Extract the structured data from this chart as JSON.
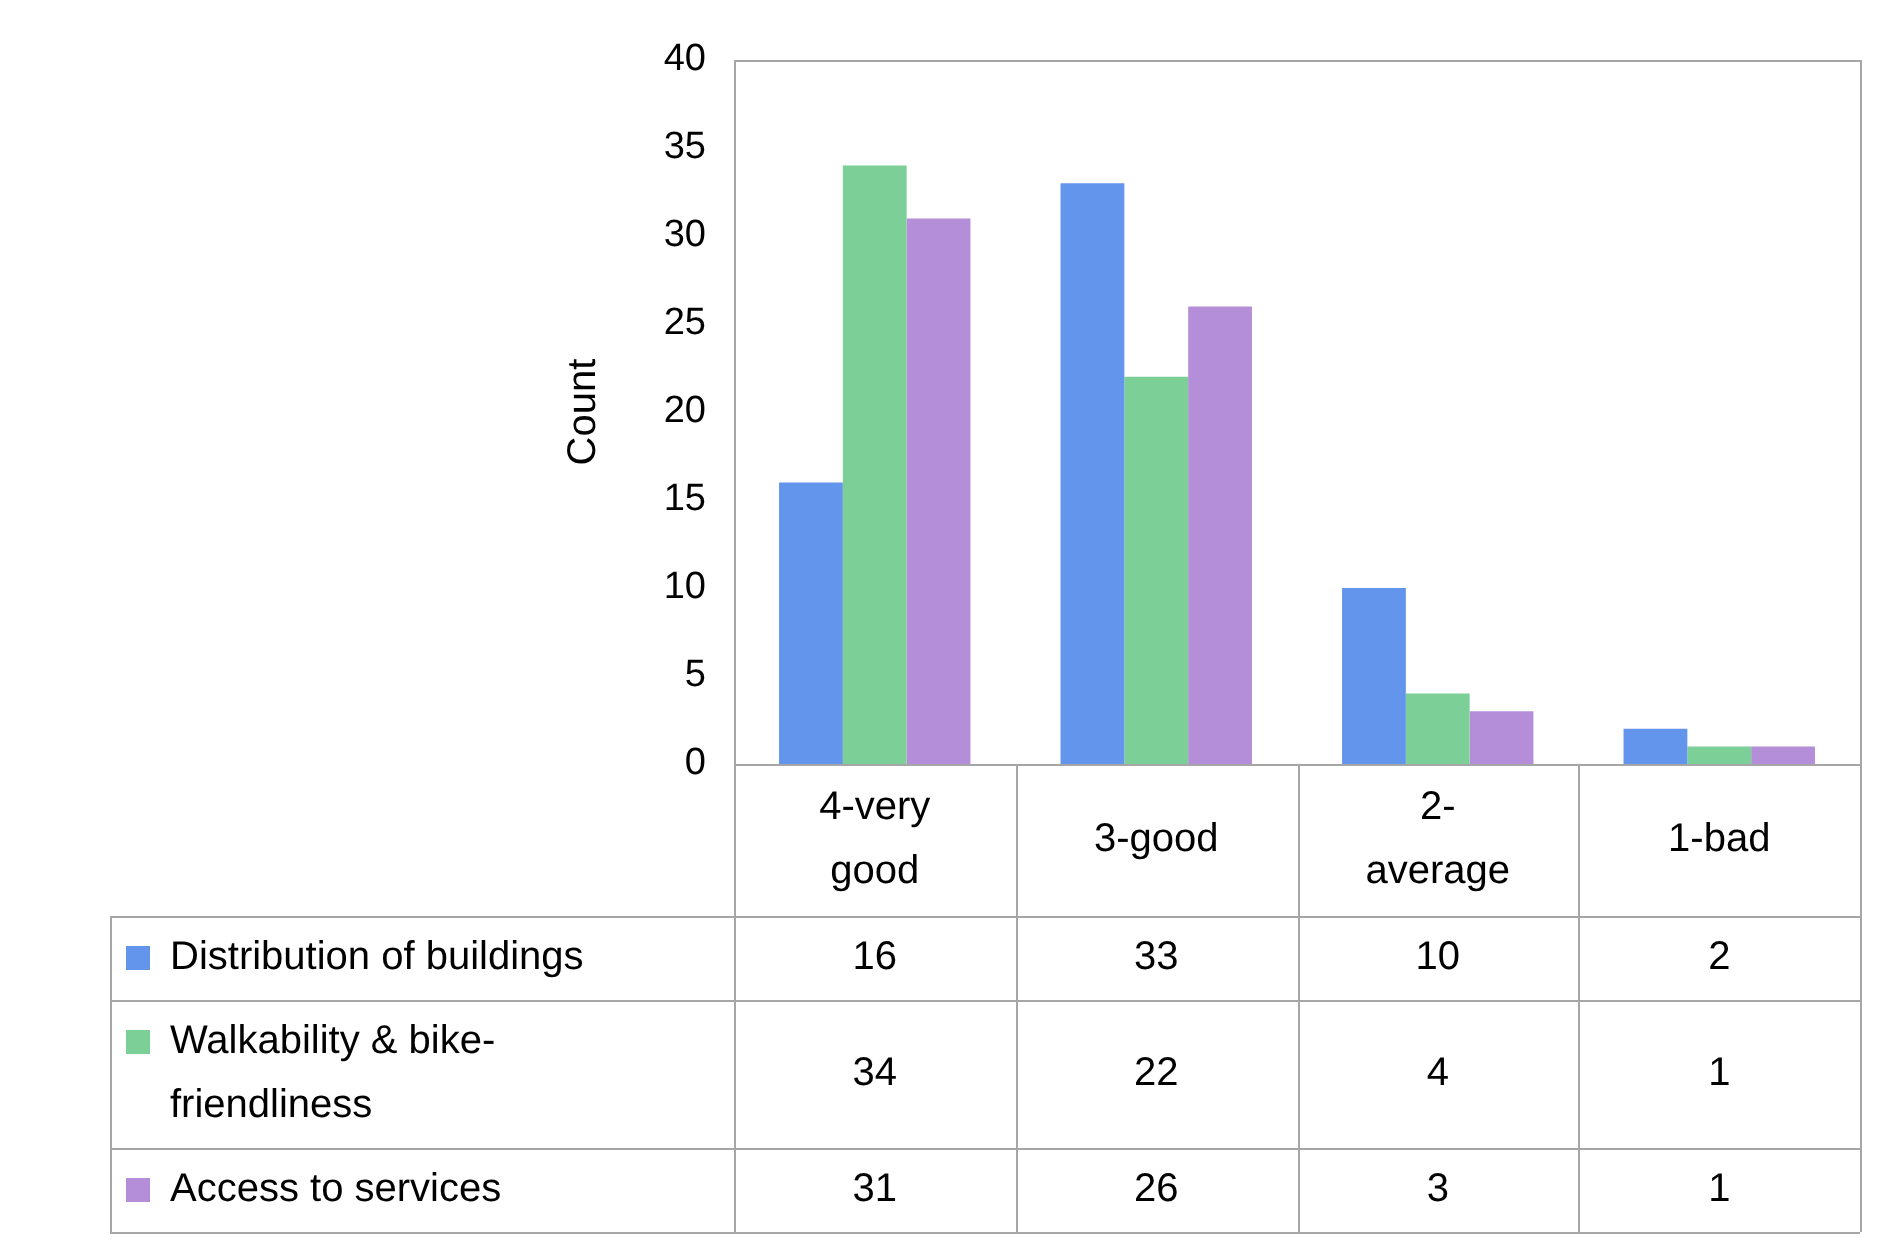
{
  "chart_data": {
    "type": "bar",
    "ylabel": "Count",
    "categories": [
      "4-very good",
      "3-good",
      "2-average",
      "1-bad"
    ],
    "series": [
      {
        "name": "Distribution of buildings",
        "color": "#6495ed",
        "values": [
          16,
          33,
          10,
          2
        ]
      },
      {
        "name": "Walkability & bike-friendliness",
        "color": "#7ccf97",
        "values": [
          34,
          22,
          4,
          1
        ]
      },
      {
        "name": "Access to services",
        "color": "#b48ed8",
        "values": [
          31,
          26,
          3,
          1
        ]
      }
    ],
    "ylim": [
      0,
      40
    ],
    "yticks": [
      0,
      5,
      10,
      15,
      20,
      25,
      30,
      35,
      40
    ],
    "grid": false,
    "legend": "bottom",
    "data_labels": true
  }
}
